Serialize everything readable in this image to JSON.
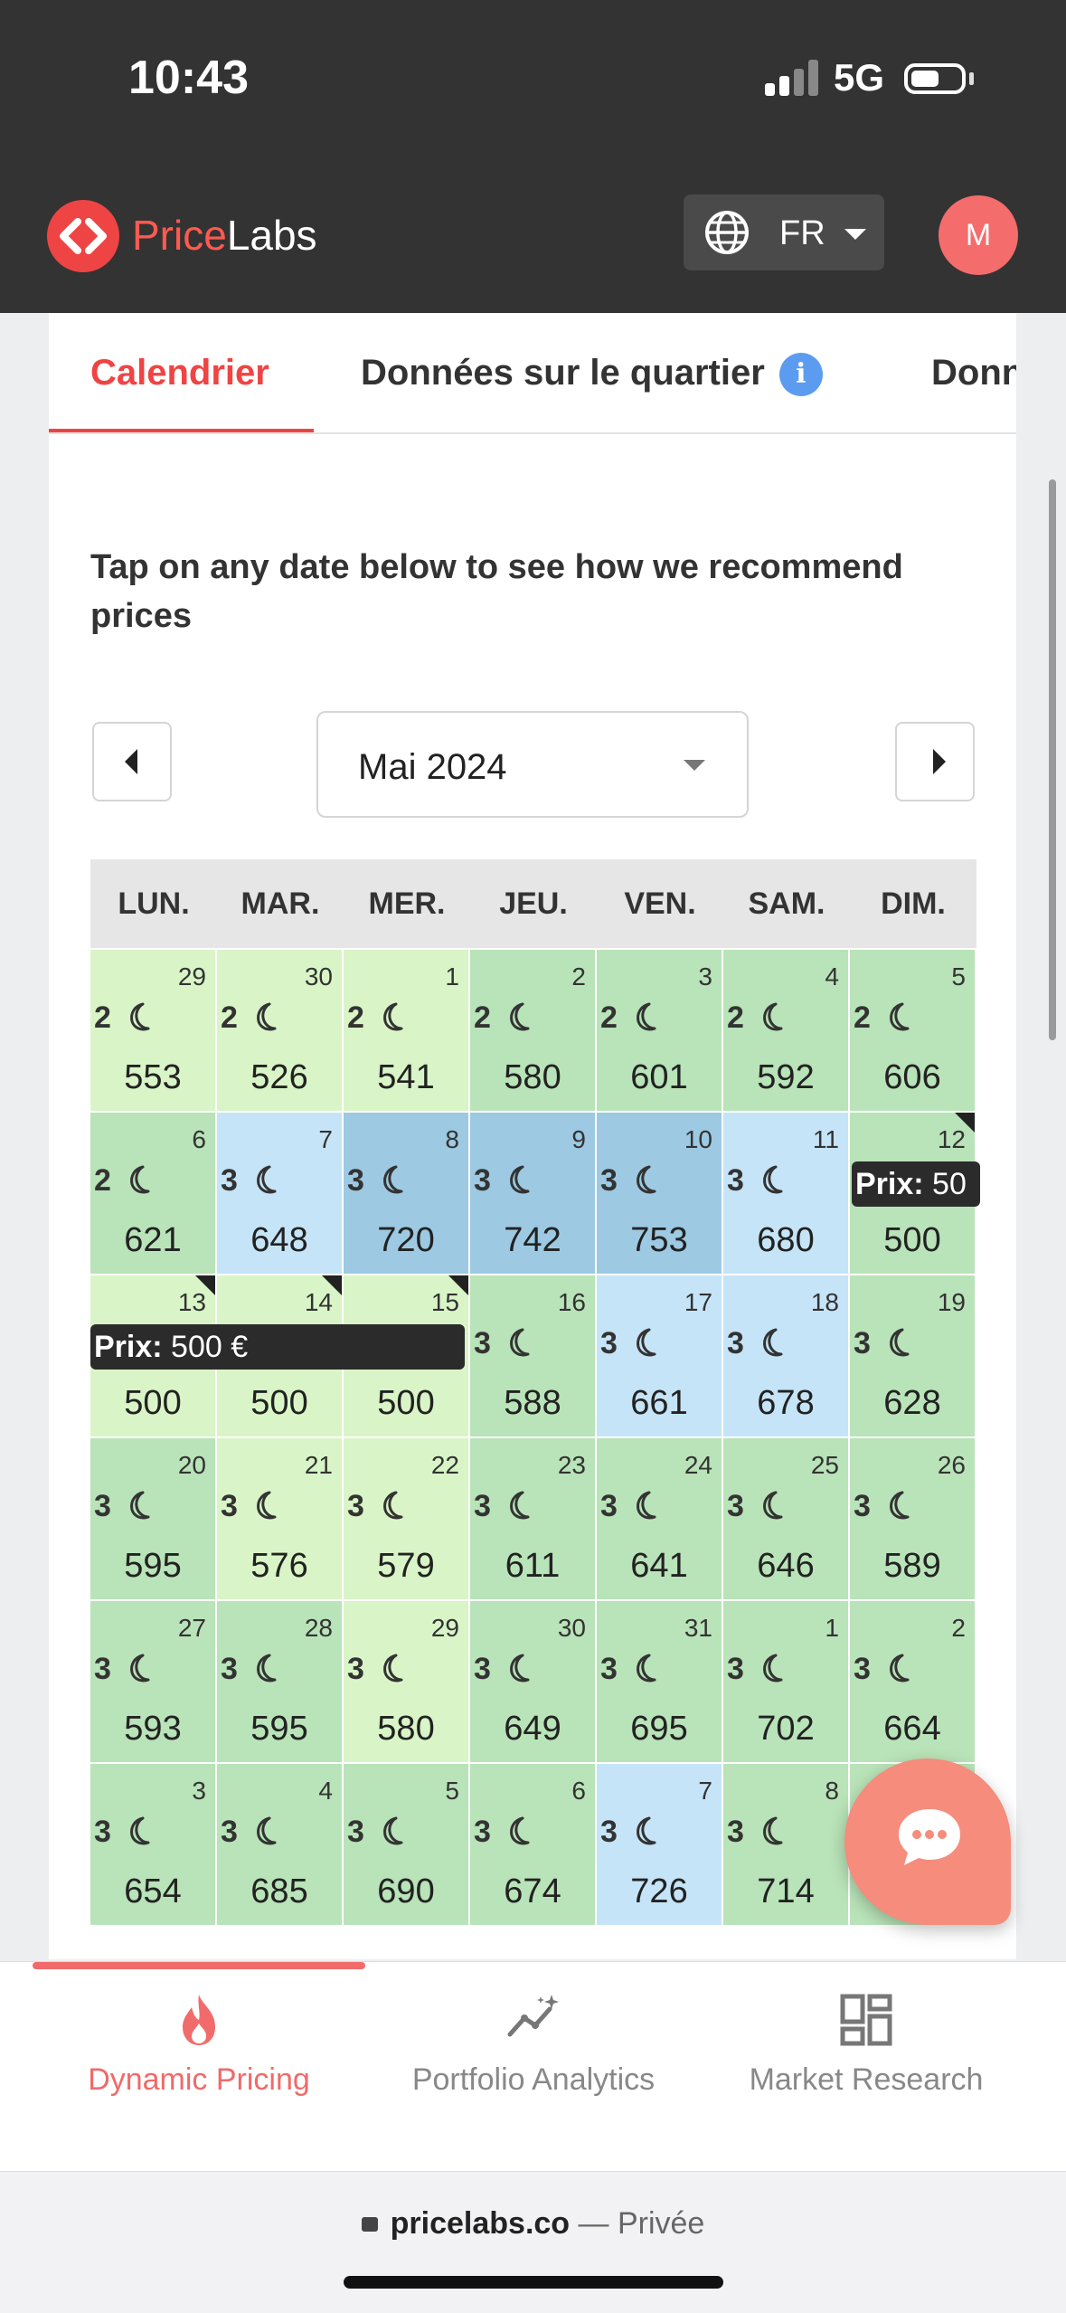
{
  "status_bar": {
    "time": "10:43",
    "network": "5G"
  },
  "header": {
    "brand_part1": "Price",
    "brand_part2": "Labs",
    "language_code": "FR",
    "avatar_initial": "M",
    "accent_color": "#ef4444"
  },
  "tabs": [
    {
      "label": "Calendrier",
      "active": true
    },
    {
      "label": "Données sur le quartier",
      "active": false
    },
    {
      "label": "Donn",
      "active": false
    }
  ],
  "instructions": "Tap on any date below to see how we recommend prices",
  "month_selector": {
    "value": "Mai 2024"
  },
  "calendar": {
    "day_names": [
      "LUN.",
      "MAR.",
      "MER.",
      "JEU.",
      "VEN.",
      "SAM.",
      "DIM."
    ],
    "legend_colors": {
      "light_green": "#d9f5c7",
      "green": "#b9e3b8",
      "light_blue": "#c6e4f7",
      "blue": "#9dc9e2"
    },
    "weeks": [
      [
        {
          "date": "29",
          "nights": "2",
          "price": "553",
          "color": "light_green"
        },
        {
          "date": "30",
          "nights": "2",
          "price": "526",
          "color": "light_green"
        },
        {
          "date": "1",
          "nights": "2",
          "price": "541",
          "color": "light_green"
        },
        {
          "date": "2",
          "nights": "2",
          "price": "580",
          "color": "green"
        },
        {
          "date": "3",
          "nights": "2",
          "price": "601",
          "color": "green"
        },
        {
          "date": "4",
          "nights": "2",
          "price": "592",
          "color": "green"
        },
        {
          "date": "5",
          "nights": "2",
          "price": "606",
          "color": "green"
        }
      ],
      [
        {
          "date": "6",
          "nights": "2",
          "price": "621",
          "color": "green"
        },
        {
          "date": "7",
          "nights": "3",
          "price": "648",
          "color": "light_blue"
        },
        {
          "date": "8",
          "nights": "3",
          "price": "720",
          "color": "blue"
        },
        {
          "date": "9",
          "nights": "3",
          "price": "742",
          "color": "blue"
        },
        {
          "date": "10",
          "nights": "3",
          "price": "753",
          "color": "blue"
        },
        {
          "date": "11",
          "nights": "3",
          "price": "680",
          "color": "light_blue"
        },
        {
          "date": "12",
          "nights": "",
          "price": "500",
          "color": "green",
          "flag": true
        }
      ],
      [
        {
          "date": "13",
          "nights": "",
          "price": "500",
          "color": "light_green",
          "flag": true
        },
        {
          "date": "14",
          "nights": "",
          "price": "500",
          "color": "light_green",
          "flag": true
        },
        {
          "date": "15",
          "nights": "",
          "price": "500",
          "color": "light_green",
          "flag": true
        },
        {
          "date": "16",
          "nights": "3",
          "price": "588",
          "color": "green"
        },
        {
          "date": "17",
          "nights": "3",
          "price": "661",
          "color": "light_blue"
        },
        {
          "date": "18",
          "nights": "3",
          "price": "678",
          "color": "light_blue"
        },
        {
          "date": "19",
          "nights": "3",
          "price": "628",
          "color": "green"
        }
      ],
      [
        {
          "date": "20",
          "nights": "3",
          "price": "595",
          "color": "green"
        },
        {
          "date": "21",
          "nights": "3",
          "price": "576",
          "color": "light_green"
        },
        {
          "date": "22",
          "nights": "3",
          "price": "579",
          "color": "light_green"
        },
        {
          "date": "23",
          "nights": "3",
          "price": "611",
          "color": "green"
        },
        {
          "date": "24",
          "nights": "3",
          "price": "641",
          "color": "green"
        },
        {
          "date": "25",
          "nights": "3",
          "price": "646",
          "color": "green"
        },
        {
          "date": "26",
          "nights": "3",
          "price": "589",
          "color": "green"
        }
      ],
      [
        {
          "date": "27",
          "nights": "3",
          "price": "593",
          "color": "green"
        },
        {
          "date": "28",
          "nights": "3",
          "price": "595",
          "color": "green"
        },
        {
          "date": "29",
          "nights": "3",
          "price": "580",
          "color": "light_green"
        },
        {
          "date": "30",
          "nights": "3",
          "price": "649",
          "color": "green"
        },
        {
          "date": "31",
          "nights": "3",
          "price": "695",
          "color": "green"
        },
        {
          "date": "1",
          "nights": "3",
          "price": "702",
          "color": "green"
        },
        {
          "date": "2",
          "nights": "3",
          "price": "664",
          "color": "green"
        }
      ],
      [
        {
          "date": "3",
          "nights": "3",
          "price": "654",
          "color": "green"
        },
        {
          "date": "4",
          "nights": "3",
          "price": "685",
          "color": "green"
        },
        {
          "date": "5",
          "nights": "3",
          "price": "690",
          "color": "green"
        },
        {
          "date": "6",
          "nights": "3",
          "price": "674",
          "color": "green"
        },
        {
          "date": "7",
          "nights": "3",
          "price": "726",
          "color": "light_blue"
        },
        {
          "date": "8",
          "nights": "3",
          "price": "714",
          "color": "green"
        },
        {
          "date": "",
          "nights": "",
          "price": "",
          "color": "green"
        }
      ]
    ],
    "tooltips": [
      {
        "label": "Prix:",
        "value": "50"
      },
      {
        "label": "Prix:",
        "value": "500 €"
      }
    ]
  },
  "bottom_nav": [
    {
      "label": "Dynamic Pricing",
      "icon": "flame-icon",
      "active": true
    },
    {
      "label": "Portfolio Analytics",
      "icon": "chart-sparkle-icon",
      "active": false
    },
    {
      "label": "Market Research",
      "icon": "grid-icon",
      "active": false
    }
  ],
  "address_bar": {
    "domain": "pricelabs.co",
    "suffix": "— Privée"
  }
}
